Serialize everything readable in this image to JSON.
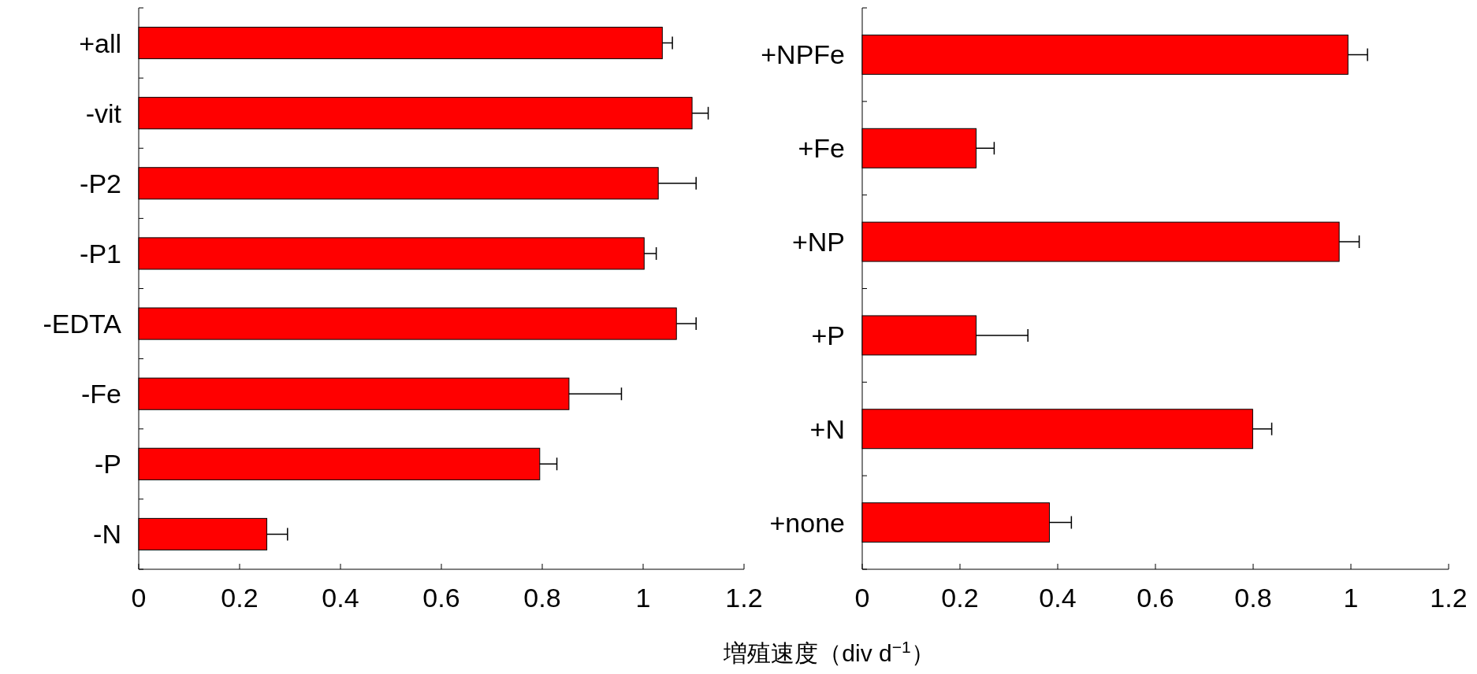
{
  "chart_data": [
    {
      "type": "bar",
      "orientation": "horizontal",
      "categories": [
        "+all",
        "-vit",
        "-P2",
        "-P1",
        "-EDTA",
        "-Fe",
        "-P",
        "-N"
      ],
      "values": [
        1.038,
        1.097,
        1.03,
        1.002,
        1.066,
        0.853,
        0.795,
        0.254
      ],
      "errors": [
        0.02,
        0.032,
        0.075,
        0.024,
        0.039,
        0.104,
        0.034,
        0.041
      ],
      "color": "#ff0000",
      "xlim": [
        0,
        1.2
      ],
      "xticks": [
        0,
        0.2,
        0.4,
        0.6,
        0.8,
        1,
        1.2
      ]
    },
    {
      "type": "bar",
      "orientation": "horizontal",
      "categories": [
        "+NPFe",
        "+Fe",
        "+NP",
        "+P",
        "+N",
        "+none"
      ],
      "values": [
        0.994,
        0.233,
        0.976,
        0.233,
        0.799,
        0.383
      ],
      "errors": [
        0.04,
        0.037,
        0.041,
        0.106,
        0.039,
        0.045
      ],
      "color": "#ff0000",
      "xlim": [
        0,
        1.2
      ],
      "xticks": [
        0,
        0.2,
        0.4,
        0.6,
        0.8,
        1,
        1.2
      ],
      "xlabel": "増殖速度（div d$^{−1}$）"
    }
  ]
}
